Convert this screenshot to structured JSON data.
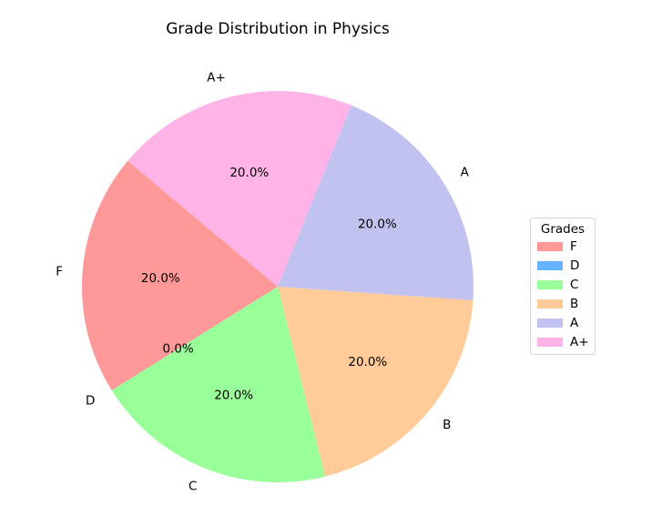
{
  "chart_data": {
    "type": "pie",
    "title": "Grade Distribution in Physics",
    "categories": [
      "F",
      "D",
      "C",
      "B",
      "A",
      "A+"
    ],
    "values": [
      20,
      0,
      20,
      20,
      20,
      20
    ],
    "percent_labels": [
      "20.0%",
      "0.0%",
      "20.0%",
      "20.0%",
      "20.0%",
      "20.0%"
    ],
    "colors": [
      "#ff9999",
      "#66b3ff",
      "#99ff99",
      "#ffcc99",
      "#c2c2f0",
      "#ffb3e6"
    ],
    "start_angle_deg": 140,
    "direction": "counterclockwise",
    "legend": {
      "title": "Grades",
      "placement": "right"
    }
  }
}
